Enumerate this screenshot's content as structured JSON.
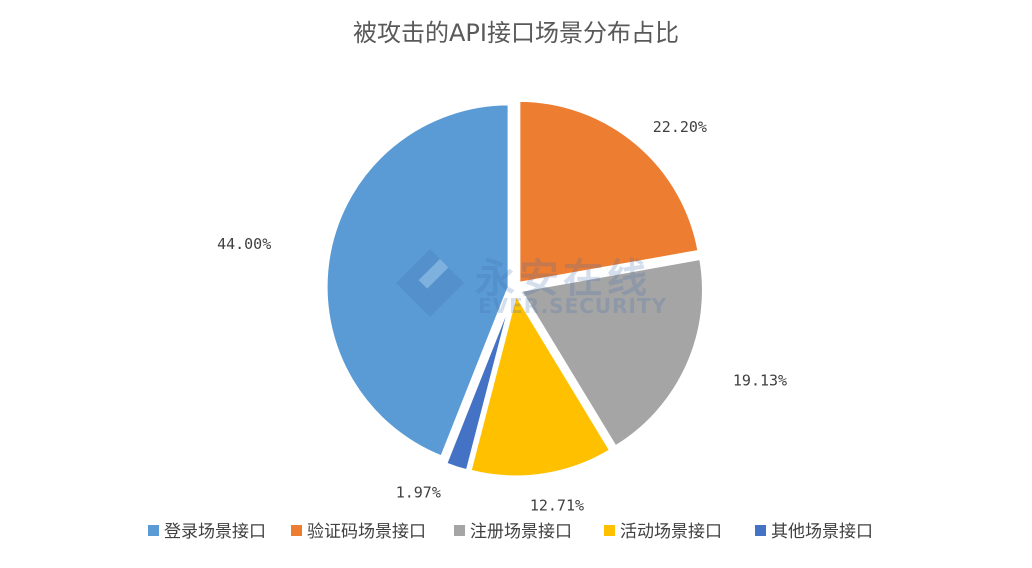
{
  "chart_data": {
    "type": "pie",
    "title": "被攻击的API接口场景分布占比",
    "categories": [
      "登录场景接口",
      "验证码场景接口",
      "注册场景接口",
      "活动场景接口",
      "其他场景接口"
    ],
    "values": [
      44.0,
      22.2,
      19.13,
      12.71,
      1.97
    ],
    "value_labels": [
      "44.00%",
      "22.20%",
      "19.13%",
      "12.71%",
      "1.97%"
    ],
    "colors": [
      "#5b9bd5",
      "#ed7d31",
      "#a5a5a5",
      "#ffc000",
      "#4472c4"
    ],
    "legend_position": "bottom"
  },
  "watermark": {
    "text_cn": "永安在线",
    "text_en": "EVER.SECURITY"
  }
}
